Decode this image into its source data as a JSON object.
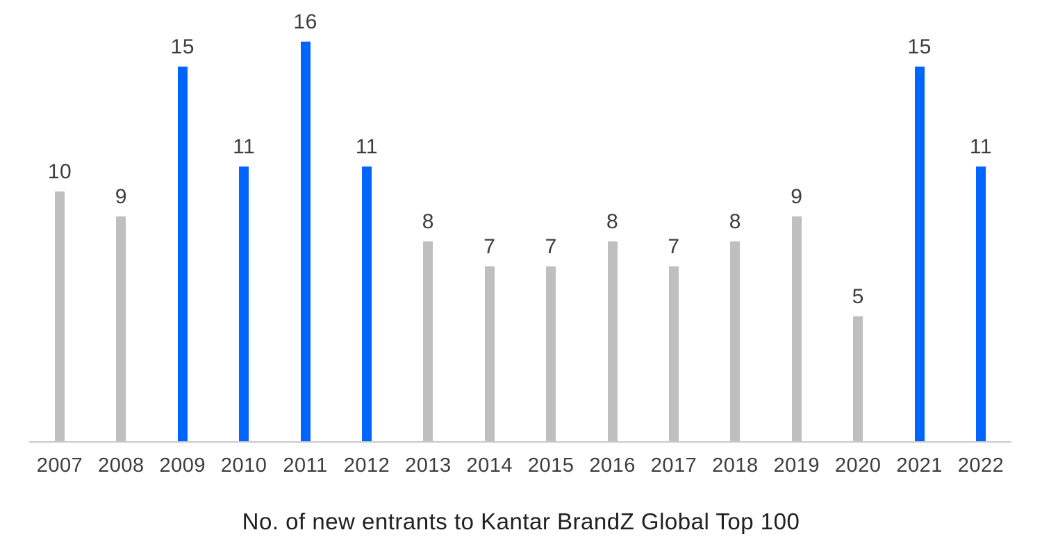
{
  "chart_data": {
    "type": "bar",
    "title": "No. of new entrants to Kantar BrandZ Global Top 100",
    "categories": [
      "2007",
      "2008",
      "2009",
      "2010",
      "2011",
      "2012",
      "2013",
      "2014",
      "2015",
      "2016",
      "2017",
      "2018",
      "2019",
      "2020",
      "2021",
      "2022"
    ],
    "values": [
      10,
      9,
      15,
      11,
      16,
      11,
      8,
      7,
      7,
      8,
      7,
      8,
      9,
      5,
      15,
      11
    ],
    "highlighted": [
      false,
      false,
      true,
      true,
      true,
      true,
      false,
      false,
      false,
      false,
      false,
      false,
      false,
      false,
      true,
      true
    ],
    "data_labels_shown": true,
    "xlabel": "",
    "ylabel": "",
    "ylim": [
      0,
      16
    ],
    "grid": false,
    "legend_position": "none",
    "colors": {
      "highlight_bar": "#0064FF",
      "default_bar": "#BFBFBF",
      "axis_line": "#C9C9C9",
      "label_text": "#3D3D3D",
      "caption_text": "#212121"
    }
  }
}
